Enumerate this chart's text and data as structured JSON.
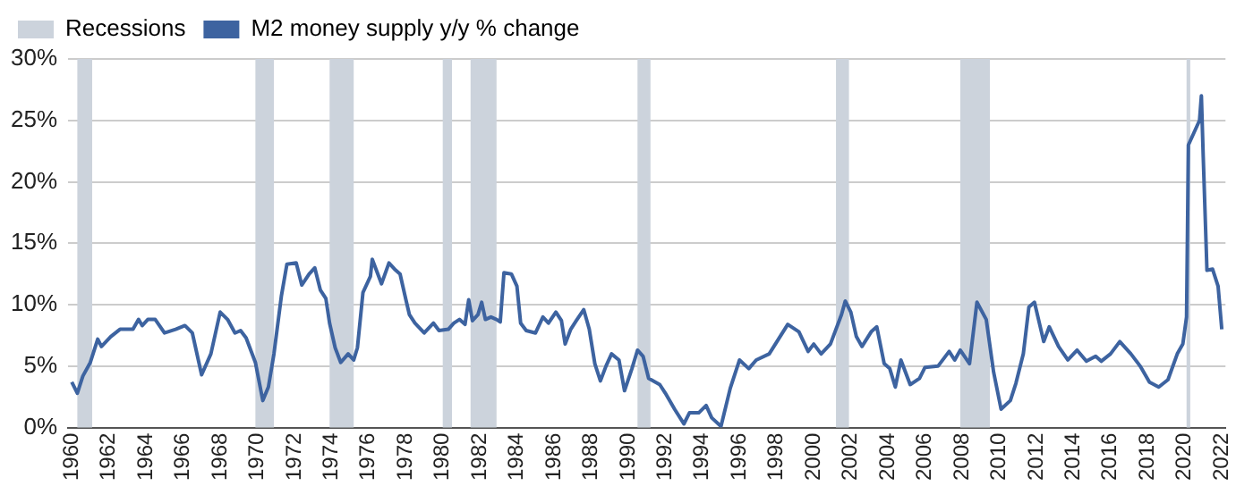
{
  "chart_data": {
    "type": "line",
    "legend": "top left",
    "grid": "y",
    "marker": "none",
    "line_style": "solid",
    "xlim": [
      1959.8,
      2022.2
    ],
    "xticks": [
      1960,
      1962,
      1964,
      1966,
      1968,
      1970,
      1972,
      1974,
      1976,
      1978,
      1980,
      1982,
      1984,
      1986,
      1988,
      1990,
      1992,
      1994,
      1996,
      1998,
      2000,
      2002,
      2004,
      2006,
      2008,
      2010,
      2012,
      2014,
      2016,
      2018,
      2020,
      2022
    ],
    "ylim": [
      0,
      30
    ],
    "yticks": [
      {
        "value": 0,
        "label": "0%"
      },
      {
        "value": 5,
        "label": "5%"
      },
      {
        "value": 10,
        "label": "10%"
      },
      {
        "value": 15,
        "label": "15%"
      },
      {
        "value": 20,
        "label": "20%"
      },
      {
        "value": 25,
        "label": "25%"
      },
      {
        "value": 30,
        "label": "30%"
      }
    ],
    "bands": [
      {
        "axis": "x",
        "from": 1960.3,
        "to": 1961.1,
        "label": "Recessions",
        "color": "#ccd3dc"
      },
      {
        "axis": "x",
        "from": 1969.9,
        "to": 1970.9,
        "color": "#ccd3dc"
      },
      {
        "axis": "x",
        "from": 1973.9,
        "to": 1975.2,
        "color": "#ccd3dc"
      },
      {
        "axis": "x",
        "from": 1980.0,
        "to": 1980.5,
        "color": "#ccd3dc"
      },
      {
        "axis": "x",
        "from": 1981.5,
        "to": 1982.9,
        "color": "#ccd3dc"
      },
      {
        "axis": "x",
        "from": 1990.5,
        "to": 1991.2,
        "color": "#ccd3dc"
      },
      {
        "axis": "x",
        "from": 2001.2,
        "to": 2001.9,
        "color": "#ccd3dc"
      },
      {
        "axis": "x",
        "from": 2007.9,
        "to": 2009.5,
        "color": "#ccd3dc"
      },
      {
        "axis": "x",
        "from": 2020.1,
        "to": 2020.3,
        "color": "#ccd3dc"
      }
    ],
    "series": [
      {
        "name": "M2 money supply y/y % change",
        "color": "#3d63a0",
        "x": [
          1960.0,
          1960.3,
          1960.6,
          1961.0,
          1961.4,
          1961.6,
          1962.1,
          1962.6,
          1963.3,
          1963.6,
          1963.8,
          1964.1,
          1964.5,
          1965.0,
          1965.6,
          1966.1,
          1966.5,
          1967.0,
          1967.5,
          1968.0,
          1968.4,
          1968.8,
          1969.1,
          1969.4,
          1969.9,
          1970.3,
          1970.6,
          1970.9,
          1971.3,
          1971.6,
          1972.1,
          1972.4,
          1972.8,
          1973.1,
          1973.4,
          1973.7,
          1973.9,
          1974.2,
          1974.5,
          1974.9,
          1975.2,
          1975.4,
          1975.7,
          1976.1,
          1976.2,
          1976.5,
          1976.7,
          1977.1,
          1977.4,
          1977.7,
          1978.0,
          1978.2,
          1978.5,
          1979.0,
          1979.5,
          1979.8,
          1980.3,
          1980.6,
          1980.9,
          1981.2,
          1981.4,
          1981.6,
          1981.9,
          1982.1,
          1982.3,
          1982.6,
          1982.9,
          1983.1,
          1983.3,
          1983.7,
          1984.0,
          1984.2,
          1984.5,
          1985.0,
          1985.4,
          1985.7,
          1986.1,
          1986.4,
          1986.6,
          1986.9,
          1987.2,
          1987.6,
          1987.9,
          1988.2,
          1988.5,
          1988.8,
          1989.1,
          1989.5,
          1989.8,
          1990.2,
          1990.5,
          1990.8,
          1991.1,
          1991.7,
          1992.0,
          1992.5,
          1993.0,
          1993.3,
          1993.8,
          1994.2,
          1994.5,
          1995.0,
          1995.5,
          1996.0,
          1996.5,
          1996.9,
          1997.6,
          1998.1,
          1998.6,
          1999.2,
          1999.7,
          2000.0,
          2000.4,
          2000.9,
          2001.5,
          2001.7,
          2002.0,
          2002.3,
          2002.6,
          2003.1,
          2003.4,
          2003.8,
          2004.1,
          2004.4,
          2004.7,
          2005.2,
          2005.7,
          2006.0,
          2006.7,
          2007.3,
          2007.6,
          2007.9,
          2008.4,
          2008.8,
          2009.3,
          2009.7,
          2010.1,
          2010.6,
          2010.9,
          2011.3,
          2011.6,
          2011.9,
          2012.4,
          2012.7,
          2013.2,
          2013.7,
          2014.2,
          2014.7,
          2015.2,
          2015.5,
          2016.0,
          2016.5,
          2017.1,
          2017.6,
          2018.1,
          2018.6,
          2019.1,
          2019.6,
          2019.9,
          2020.1,
          2020.2,
          2020.5,
          2020.8,
          2020.9,
          2021.0,
          2021.2,
          2021.5,
          2021.8,
          2022.0
        ],
        "values": [
          3.7,
          2.8,
          4.2,
          5.3,
          7.2,
          6.6,
          7.4,
          8.0,
          8.0,
          8.8,
          8.3,
          8.8,
          8.8,
          7.7,
          8.0,
          8.3,
          7.7,
          4.3,
          6.0,
          9.4,
          8.8,
          7.7,
          7.9,
          7.3,
          5.3,
          2.2,
          3.3,
          6.0,
          10.7,
          13.3,
          13.4,
          11.6,
          12.5,
          13.0,
          11.2,
          10.5,
          8.5,
          6.5,
          5.3,
          6.0,
          5.5,
          6.5,
          11.0,
          12.3,
          13.7,
          12.5,
          11.7,
          13.4,
          12.9,
          12.5,
          10.5,
          9.2,
          8.5,
          7.7,
          8.5,
          7.9,
          8.0,
          8.5,
          8.8,
          8.4,
          10.4,
          8.7,
          9.2,
          10.2,
          8.8,
          9.0,
          8.8,
          8.6,
          12.6,
          12.5,
          11.5,
          8.5,
          7.9,
          7.7,
          9.0,
          8.5,
          9.4,
          8.7,
          6.8,
          8.0,
          8.7,
          9.6,
          8.0,
          5.2,
          3.8,
          5.0,
          6.0,
          5.5,
          3.0,
          4.8,
          6.3,
          5.8,
          4.0,
          3.5,
          2.8,
          1.5,
          0.3,
          1.2,
          1.2,
          1.8,
          0.8,
          0.1,
          3.2,
          5.5,
          4.8,
          5.5,
          6.0,
          7.2,
          8.4,
          7.8,
          6.2,
          6.8,
          6.0,
          6.8,
          9.2,
          10.3,
          9.4,
          7.4,
          6.6,
          7.8,
          8.2,
          5.2,
          4.8,
          3.3,
          5.5,
          3.5,
          4.0,
          4.9,
          5.0,
          6.2,
          5.5,
          6.3,
          5.2,
          10.2,
          8.8,
          4.5,
          1.5,
          2.2,
          3.6,
          6.0,
          9.8,
          10.2,
          7.0,
          8.2,
          6.6,
          5.5,
          6.3,
          5.4,
          5.8,
          5.4,
          6.0,
          7.0,
          6.0,
          5.0,
          3.7,
          3.3,
          3.9,
          6.0,
          6.8,
          9.0,
          23.0,
          24.0,
          25.0,
          27.0,
          22.0,
          12.8,
          12.9,
          11.5,
          8.0
        ]
      }
    ]
  }
}
